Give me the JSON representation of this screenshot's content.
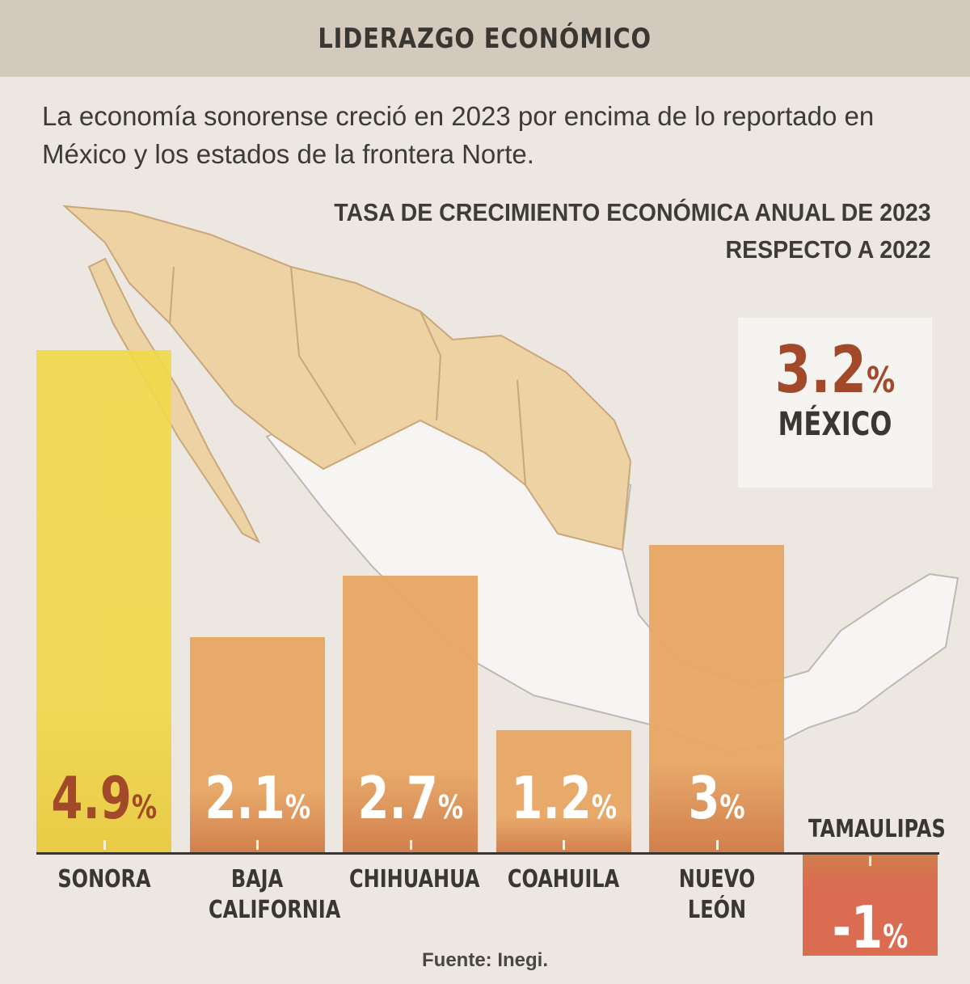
{
  "header": {
    "title": "LIDERAZGO ECONÓMICO"
  },
  "subtitle": "La economía sonorense creció en 2023 por encima de lo reportado en México y los estados de la frontera Norte.",
  "mexico": {
    "value": "3.2",
    "unit": "%",
    "label": "MÉXICO"
  },
  "source": "Fuente: Inegi.",
  "chart_data": {
    "type": "bar",
    "title_line1": "TASA DE CRECIMIENTO ECONÓMICA ANUAL DE 2023",
    "title_line2": "RESPECTO A 2022",
    "categories": [
      "SONORA",
      "BAJA CALIFORNIA",
      "CHIHUAHUA",
      "COAHUILA",
      "NUEVO LEÓN",
      "TAMAULIPAS"
    ],
    "values": [
      4.9,
      2.1,
      2.7,
      1.2,
      3,
      -1
    ],
    "value_labels": [
      "4.9",
      "2.1",
      "2.7",
      "1.2",
      "3",
      "-1"
    ],
    "unit": "%",
    "ylim": [
      -1,
      4.9
    ],
    "colors": {
      "highlight": "#f0d84a",
      "default": "#e8a765",
      "negative": "#d9664a",
      "highlight_text": "#a2492a"
    },
    "xlabel": "",
    "ylabel": ""
  }
}
